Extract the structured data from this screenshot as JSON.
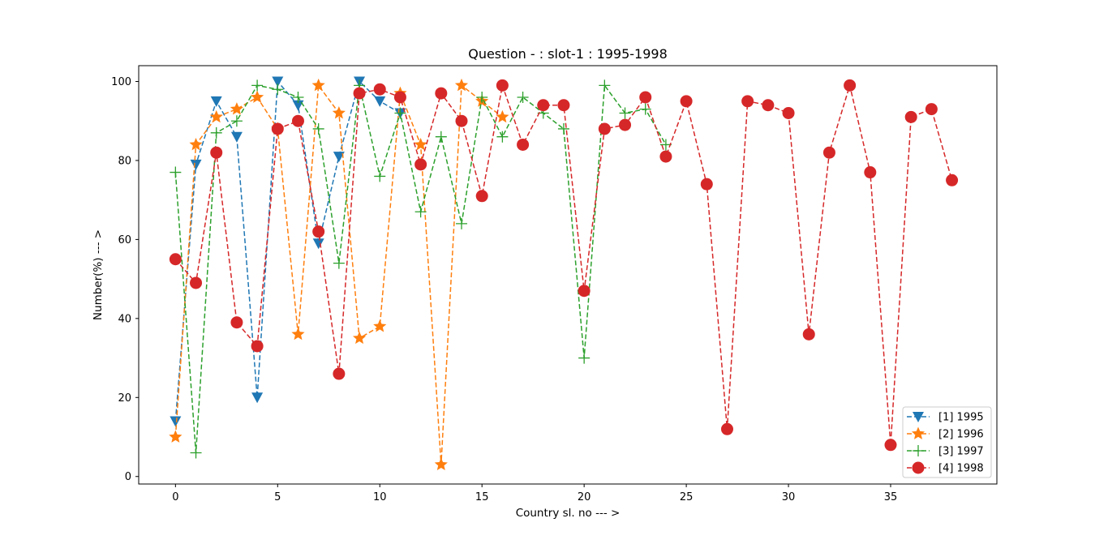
{
  "chart_data": {
    "type": "line",
    "title": "Question - : slot-1 : 1995-1998",
    "xlabel": "Country sl. no --- >",
    "ylabel": "Number(%) --- >",
    "xlim": [
      -1.8,
      40.2
    ],
    "ylim": [
      -1.9,
      104
    ],
    "xticks": [
      0,
      5,
      10,
      15,
      20,
      25,
      30,
      35
    ],
    "yticks": [
      0,
      20,
      40,
      60,
      80,
      100
    ],
    "grid": false,
    "legend_position": "lower-right",
    "series": [
      {
        "name": "[1] 1995",
        "color": "#1f77b4",
        "marker": "triangle-down",
        "linestyle": "dashed",
        "x": [
          0,
          1,
          2,
          3,
          4,
          5,
          6,
          7,
          8,
          9,
          10,
          11
        ],
        "y": [
          14,
          79,
          95,
          86,
          20,
          100,
          94,
          59,
          81,
          100,
          95,
          92
        ]
      },
      {
        "name": "[2] 1996",
        "color": "#ff7f0e",
        "marker": "star",
        "linestyle": "dashed",
        "x": [
          0,
          1,
          2,
          3,
          4,
          5,
          6,
          7,
          8,
          9,
          10,
          11,
          12,
          13,
          14,
          15,
          16
        ],
        "y": [
          10,
          84,
          91,
          93,
          96,
          88,
          36,
          99,
          92,
          35,
          38,
          97,
          84,
          3,
          99,
          95,
          91
        ]
      },
      {
        "name": "[3] 1997",
        "color": "#2ca02c",
        "marker": "plus",
        "linestyle": "dashed",
        "x": [
          0,
          1,
          2,
          3,
          4,
          5,
          6,
          7,
          8,
          9,
          10,
          11,
          12,
          13,
          14,
          15,
          16,
          17,
          18,
          19,
          20,
          21,
          22,
          23,
          24
        ],
        "y": [
          77,
          6,
          87,
          90,
          99,
          98,
          96,
          88,
          54,
          99,
          76,
          92,
          67,
          86,
          64,
          96,
          86,
          96,
          92,
          88,
          30,
          99,
          92,
          93,
          84
        ]
      },
      {
        "name": "[4] 1998",
        "color": "#d62728",
        "marker": "circle",
        "linestyle": "dashed",
        "x": [
          0,
          1,
          2,
          3,
          4,
          5,
          6,
          7,
          8,
          9,
          10,
          11,
          12,
          13,
          14,
          15,
          16,
          17,
          18,
          19,
          20,
          21,
          22,
          23,
          24,
          25,
          26,
          27,
          28,
          29,
          30,
          31,
          32,
          33,
          34,
          35,
          36,
          37,
          38
        ],
        "y": [
          55,
          49,
          82,
          39,
          33,
          88,
          90,
          62,
          26,
          97,
          98,
          96,
          79,
          97,
          90,
          71,
          99,
          84,
          94,
          94,
          47,
          88,
          89,
          96,
          81,
          95,
          74,
          12,
          95,
          94,
          92,
          36,
          82,
          99,
          77,
          8,
          91,
          93,
          75
        ]
      }
    ]
  }
}
